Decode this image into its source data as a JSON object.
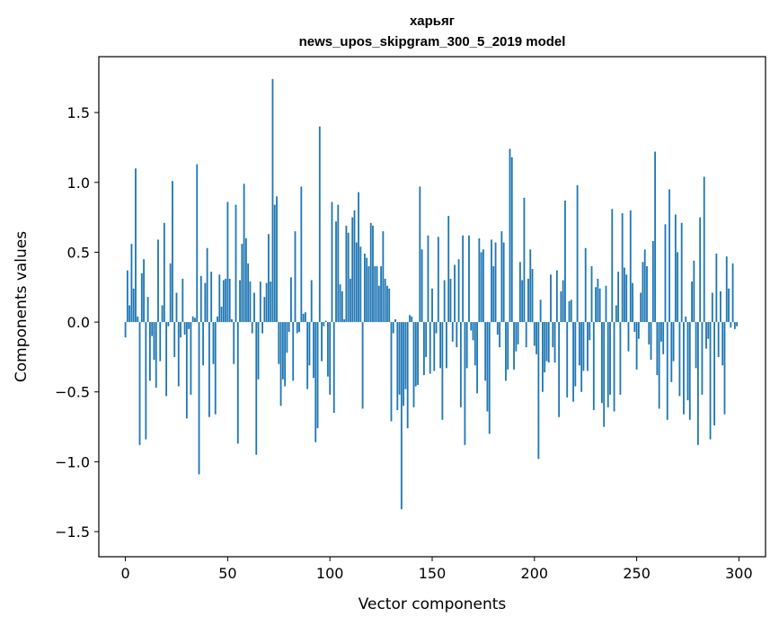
{
  "chart_data": {
    "type": "bar",
    "title": "харьяг",
    "subtitle": "news_upos_skipgram_300_5_2019 model",
    "xlabel": "Vector components",
    "ylabel": "Components values",
    "xlim": [
      -13,
      313
    ],
    "ylim": [
      -1.68,
      1.9
    ],
    "xticks": [
      0,
      50,
      100,
      150,
      200,
      250,
      300
    ],
    "xtick_labels": [
      "0",
      "50",
      "100",
      "150",
      "200",
      "250",
      "300"
    ],
    "yticks": [
      -1.5,
      -1.0,
      -0.5,
      0.0,
      0.5,
      1.0,
      1.5
    ],
    "ytick_labels": [
      "−1.5",
      "−1.0",
      "−0.5",
      "0.0",
      "0.5",
      "1.0",
      "1.5"
    ],
    "bar_color": "#1f77b4",
    "values": [
      -0.11,
      0.37,
      0.12,
      0.56,
      0.24,
      1.1,
      0.04,
      -0.88,
      0.35,
      0.45,
      -0.84,
      0.18,
      -0.42,
      -0.1,
      -0.27,
      -0.47,
      0.59,
      -0.28,
      0.12,
      0.71,
      -0.53,
      -0.03,
      0.42,
      1.01,
      -0.25,
      0.21,
      -0.46,
      -0.11,
      0.31,
      -0.09,
      -0.69,
      -0.05,
      -0.52,
      0.04,
      0.03,
      1.13,
      -1.09,
      0.33,
      -0.31,
      0.28,
      0.53,
      -0.68,
      0.36,
      -0.3,
      -0.66,
      0.04,
      0.34,
      0.11,
      0.3,
      0.31,
      0.86,
      0.31,
      0.02,
      -0.3,
      0.84,
      -0.87,
      0.3,
      0.56,
      0.99,
      0.6,
      0.42,
      0.29,
      -0.08,
      0.21,
      -0.95,
      -0.41,
      0.29,
      -0.08,
      0.18,
      0.28,
      0.63,
      0.29,
      1.74,
      0.84,
      0.9,
      -0.3,
      -0.6,
      -0.41,
      -0.46,
      -0.22,
      -0.07,
      0.32,
      -0.42,
      0.65,
      -0.08,
      -0.07,
      0.97,
      0.06,
      0.07,
      -0.48,
      -0.31,
      0.3,
      -0.4,
      -0.86,
      -0.76,
      1.4,
      -0.28,
      -0.03,
      0.01,
      -0.39,
      -0.52,
      0.86,
      -0.65,
      0.72,
      0.84,
      0.27,
      0.22,
      0.02,
      0.69,
      0.64,
      0.31,
      0.75,
      0.8,
      0.57,
      0.93,
      0.54,
      -0.62,
      0.49,
      0.46,
      0.4,
      0.71,
      0.69,
      0.4,
      0.4,
      0.26,
      0.4,
      0.65,
      0.31,
      0.26,
      0.24,
      -0.71,
      -0.08,
      0.02,
      -0.63,
      -0.52,
      -1.34,
      -0.6,
      -0.48,
      -0.76,
      0.05,
      0.04,
      -0.61,
      -0.46,
      -0.45,
      0.97,
      0.52,
      -0.38,
      -0.25,
      0.62,
      -0.37,
      0.24,
      -0.35,
      -0.08,
      0.61,
      -0.33,
      -0.7,
      0.3,
      -0.33,
      0.76,
      0.31,
      -0.14,
      0.41,
      -0.18,
      0.45,
      -0.61,
      0.62,
      -0.88,
      -0.33,
      0.62,
      -0.06,
      -0.13,
      -0.31,
      -0.51,
      0.6,
      0.5,
      0.52,
      -0.42,
      -0.64,
      -0.8,
      0.59,
      0.4,
      0.57,
      -0.09,
      -0.18,
      0.65,
      0.57,
      -0.42,
      -0.34,
      1.24,
      1.18,
      -0.34,
      -0.21,
      -0.16,
      0.43,
      0.3,
      0.89,
      -0.18,
      0.31,
      0.52,
      0.38,
      -0.17,
      -0.23,
      -0.98,
      0.16,
      -0.5,
      -0.36,
      -0.28,
      -0.29,
      0.34,
      -0.18,
      -0.29,
      0.37,
      -0.68,
      0.22,
      0.3,
      0.87,
      -0.54,
      0.15,
      0.16,
      -0.57,
      -0.46,
      0.98,
      -0.31,
      -0.5,
      -0.35,
      0.53,
      -0.35,
      -0.13,
      0.4,
      -0.63,
      0.25,
      0.31,
      0.24,
      -0.58,
      -0.75,
      0.26,
      -0.61,
      -0.52,
      0.81,
      -0.64,
      0.12,
      0.36,
      -0.52,
      0.78,
      0.39,
      0.34,
      -0.21,
      0.8,
      0.28,
      -0.07,
      -0.34,
      -0.12,
      0.21,
      0.43,
      0.52,
      0.4,
      -0.16,
      -0.27,
      0.58,
      1.22,
      -0.38,
      -0.62,
      -0.14,
      -0.23,
      0.7,
      -0.7,
      0.95,
      -0.43,
      -0.28,
      0.77,
      0.5,
      -0.53,
      0.71,
      -0.66,
      0.04,
      -0.56,
      -0.7,
      0.29,
      0.44,
      -0.33,
      -0.88,
      0.75,
      -0.52,
      1.04,
      -0.19,
      -0.12,
      -0.84,
      0.21,
      -0.74,
      0.49,
      -0.25,
      0.22,
      -0.31,
      -0.66,
      0.47,
      0.24,
      -0.04,
      0.42,
      -0.05,
      -0.03
    ]
  }
}
